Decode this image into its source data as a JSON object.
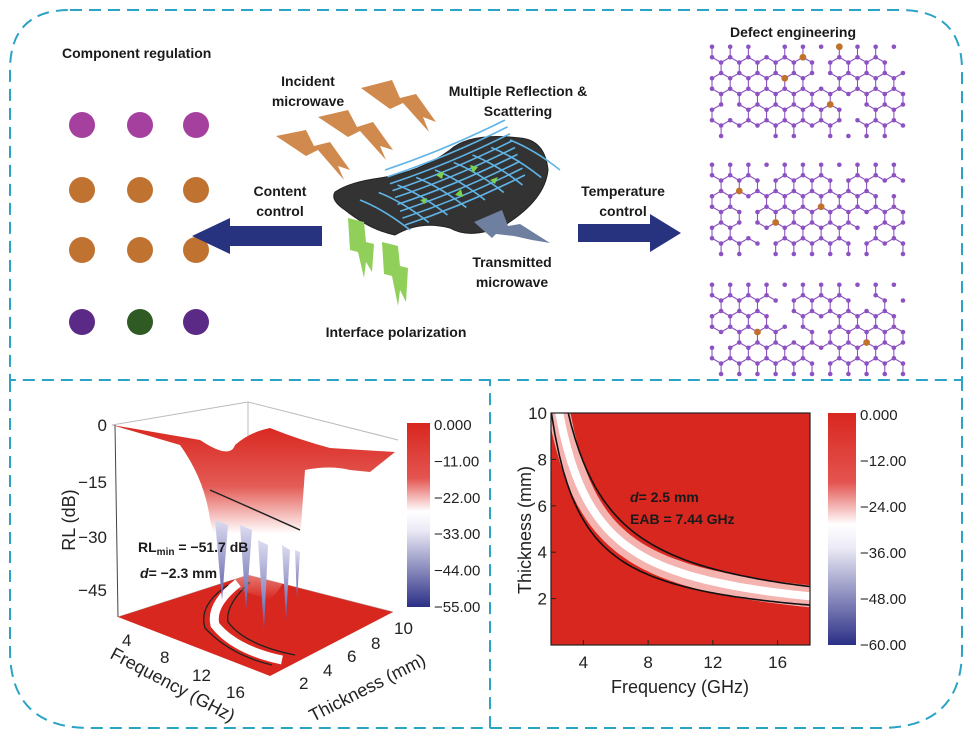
{
  "colors": {
    "frame": "#2aa3c4",
    "dot_magenta": "#a5409f",
    "dot_orange": "#c07330",
    "dot_purple": "#5a2a86",
    "dot_green": "#2f5a24",
    "arrow": "#28337f",
    "wave_orange": "#d08a4e",
    "wave_green": "#8fcf5a",
    "wave_gray": "#6f7fa0",
    "lattice": "#8d52c2",
    "defect": "#c0722d",
    "map_red": "#d8271f",
    "map_white": "#ffffff",
    "map_blue": "#2b2f86"
  },
  "top": {
    "component_regulation": "Component regulation",
    "defect_engineering": "Defect engineering",
    "incident_microwave": [
      "Incident",
      "microwave"
    ],
    "multiple_reflection": [
      "Multiple Reflection &",
      "Scattering"
    ],
    "content_control": [
      "Content",
      "control"
    ],
    "temperature_control": [
      "Temperature",
      "control"
    ],
    "transmitted_microwave": [
      "Transmitted",
      "microwave"
    ],
    "interface_polarization": "Interface polarization",
    "dot_grid": [
      [
        "magenta",
        "magenta",
        "magenta"
      ],
      [
        "orange",
        "orange",
        "orange"
      ],
      [
        "orange",
        "orange",
        "orange"
      ],
      [
        "purple",
        "green",
        "purple"
      ]
    ],
    "icons": [
      "lightning-bolt-icon",
      "arrow-left-icon",
      "arrow-right-icon"
    ]
  },
  "chart_data": [
    {
      "type": "surface3d",
      "zlabel": "RL (dB)",
      "xlabel": "Frequency (GHz)",
      "ylabel": "Thickness (mm)",
      "z_ticks": [
        "0",
        "−15",
        "−30",
        "−45"
      ],
      "x_ticks": [
        "4",
        "8",
        "12",
        "16"
      ],
      "y_ticks": [
        "2",
        "4",
        "6",
        "8",
        "10"
      ],
      "colorbar_ticks": [
        "0.000",
        "−11.00",
        "−22.00",
        "−33.00",
        "−44.00",
        "−55.00"
      ],
      "colorbar_range": [
        -55,
        0
      ],
      "annotation": {
        "rl_prefix": "RL",
        "rl_sub": "min",
        "rl_value": " = −51.7 dB",
        "d_italic": "d",
        "d_value": "= −2.3 mm"
      }
    },
    {
      "type": "heatmap",
      "xlabel": "Frequency (GHz)",
      "ylabel": "Thickness (mm)",
      "xlim": [
        2,
        18
      ],
      "ylim": [
        0,
        10
      ],
      "x_ticks": [
        "4",
        "8",
        "12",
        "16"
      ],
      "y_ticks": [
        "2",
        "4",
        "6",
        "8",
        "10"
      ],
      "colorbar_ticks": [
        "0.000",
        "−12.00",
        "−24.00",
        "−36.00",
        "−48.00",
        "−60.00"
      ],
      "colorbar_range": [
        -60,
        0
      ],
      "annotation": {
        "d_italic": "d",
        "d_value": "= 2.5 mm",
        "eab": "EAB = 7.44 GHz"
      }
    }
  ]
}
